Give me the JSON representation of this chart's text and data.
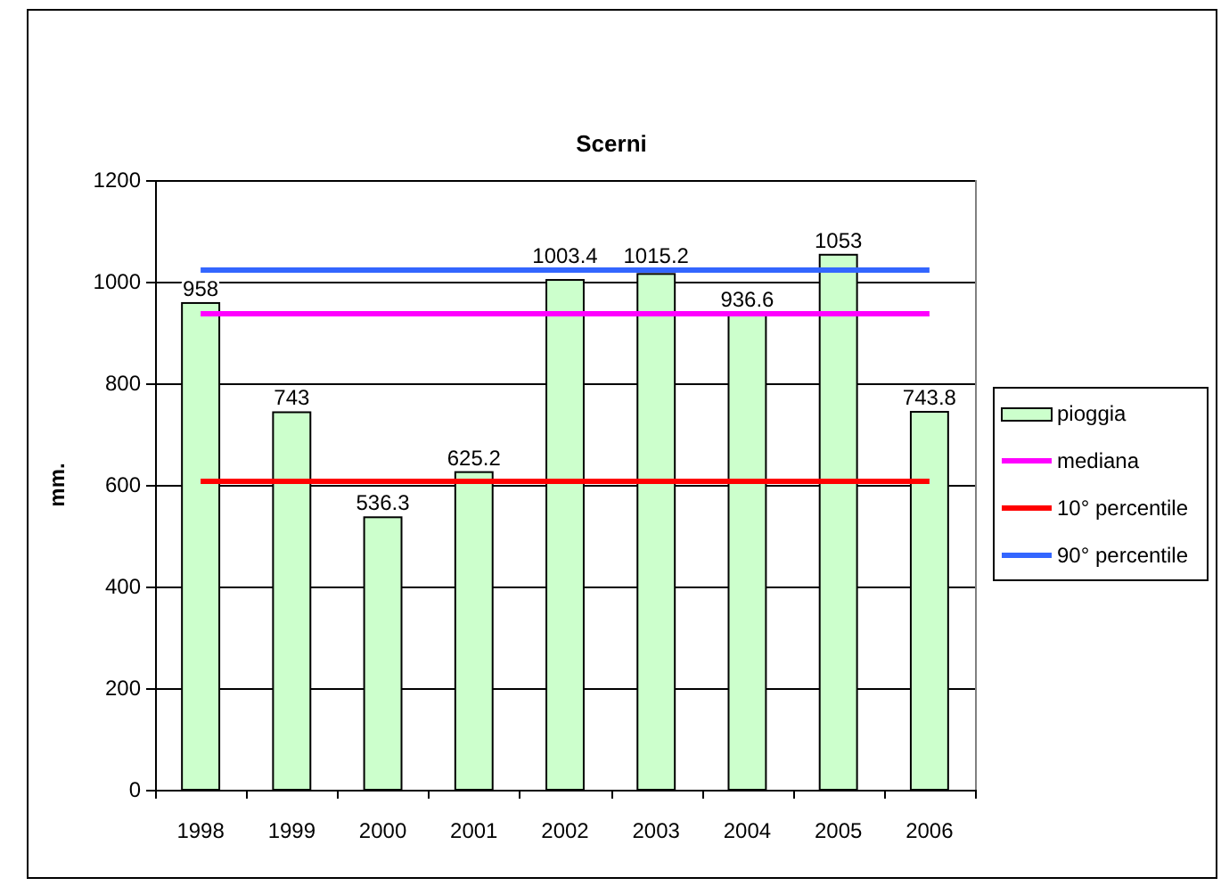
{
  "chart_data": {
    "type": "bar",
    "title": "Scerni",
    "ylabel": "mm.",
    "categories": [
      "1998",
      "1999",
      "2000",
      "2001",
      "2002",
      "2003",
      "2004",
      "2005",
      "2006"
    ],
    "series": [
      {
        "name": "pioggia",
        "color": "#ccffcc",
        "values": [
          958,
          743,
          536.3,
          625.2,
          1003.4,
          1015.2,
          936.6,
          1053,
          743.8
        ],
        "value_labels": [
          "958",
          "743",
          "536.3",
          "625.2",
          "1003.4",
          "1015.2",
          "936.6",
          "1053",
          "743.8"
        ]
      },
      {
        "name": "mediana",
        "type": "line",
        "color": "#ff00ff",
        "values": [
          937,
          937,
          937,
          937,
          937,
          937,
          937,
          937,
          937
        ]
      },
      {
        "name": "10° percentile",
        "type": "line",
        "color": "#ff0000",
        "values": [
          607,
          607,
          607,
          607,
          607,
          607,
          607,
          607,
          607
        ]
      },
      {
        "name": "90° percentile",
        "type": "line",
        "color": "#3366ff",
        "values": [
          1023,
          1023,
          1023,
          1023,
          1023,
          1023,
          1023,
          1023,
          1023
        ]
      }
    ],
    "ylim": [
      0,
      1200
    ],
    "yticks": [
      0,
      200,
      400,
      600,
      800,
      1000,
      1200
    ],
    "grid": "y",
    "legend": "right"
  }
}
